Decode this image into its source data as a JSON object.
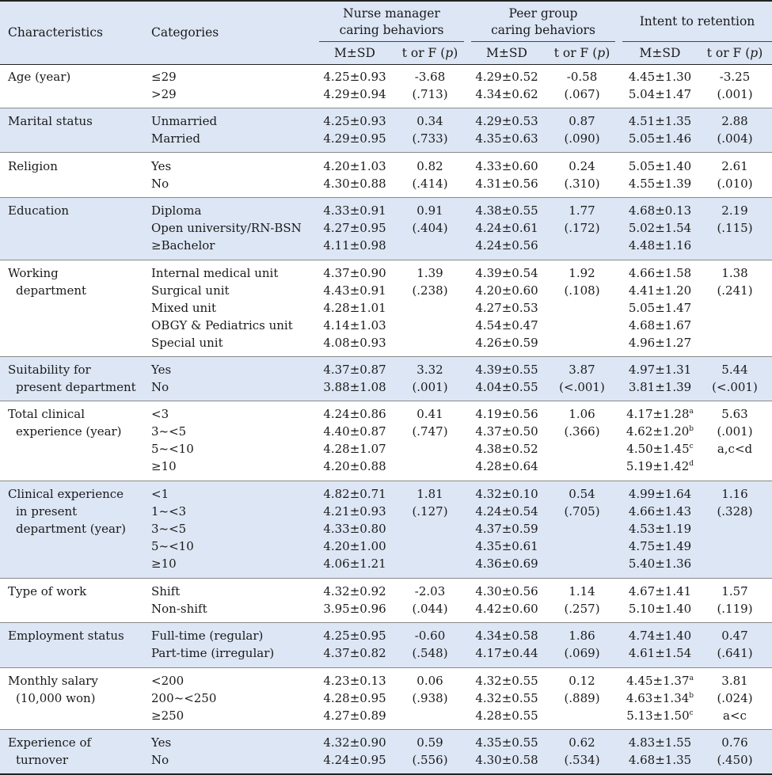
{
  "header": {
    "characteristics": "Characteristics",
    "categories": "Categories",
    "groups": [
      {
        "line1": "Nurse manager",
        "line2": "caring behaviors"
      },
      {
        "line1": "Peer group",
        "line2": "caring behaviors"
      },
      {
        "line1": "Intent to retention",
        "line2": ""
      }
    ],
    "msd": "M±SD",
    "test": "t or F (",
    "p": "p",
    "close": ")"
  },
  "rows": [
    {
      "char": [
        "Age (year)"
      ],
      "cats": [
        "≤29",
        ">29"
      ],
      "nm_msd": [
        "4.25±0.93",
        "4.29±0.94"
      ],
      "nm_t": [
        "-3.68",
        "(.713)"
      ],
      "pg_msd": [
        "4.29±0.52",
        "4.34±0.62"
      ],
      "pg_t": [
        "-0.58",
        "(.067)"
      ],
      "ir_msd": [
        "4.45±1.30",
        "5.04±1.47"
      ],
      "ir_t": [
        "-3.25",
        "(.001)"
      ]
    },
    {
      "char": [
        "Marital status"
      ],
      "cats": [
        "Unmarried",
        "Married"
      ],
      "nm_msd": [
        "4.25±0.93",
        "4.29±0.95"
      ],
      "nm_t": [
        "0.34",
        "(.733)"
      ],
      "pg_msd": [
        "4.29±0.53",
        "4.35±0.63"
      ],
      "pg_t": [
        "0.87",
        "(.090)"
      ],
      "ir_msd": [
        "4.51±1.35",
        "5.05±1.46"
      ],
      "ir_t": [
        "2.88",
        "(.004)"
      ]
    },
    {
      "char": [
        "Religion"
      ],
      "cats": [
        "Yes",
        "No"
      ],
      "nm_msd": [
        "4.20±1.03",
        "4.30±0.88"
      ],
      "nm_t": [
        "0.82",
        "(.414)"
      ],
      "pg_msd": [
        "4.33±0.60",
        "4.31±0.56"
      ],
      "pg_t": [
        "0.24",
        "(.310)"
      ],
      "ir_msd": [
        "5.05±1.40",
        "4.55±1.39"
      ],
      "ir_t": [
        "2.61",
        "(.010)"
      ]
    },
    {
      "char": [
        "Education"
      ],
      "cats": [
        "Diploma",
        "Open university/RN-BSN",
        "≥Bachelor"
      ],
      "nm_msd": [
        "4.33±0.91",
        "4.27±0.95",
        "4.11±0.98"
      ],
      "nm_t": [
        "0.91",
        "(.404)"
      ],
      "pg_msd": [
        "4.38±0.55",
        "4.24±0.61",
        "4.24±0.56"
      ],
      "pg_t": [
        "1.77",
        "(.172)"
      ],
      "ir_msd": [
        "4.68±0.13",
        "5.02±1.54",
        "4.48±1.16"
      ],
      "ir_t": [
        "2.19",
        "(.115)"
      ]
    },
    {
      "char": [
        "Working",
        "department"
      ],
      "cats": [
        "Internal medical unit",
        "Surgical unit",
        "Mixed unit",
        "OBGY & Pediatrics unit",
        "Special unit"
      ],
      "nm_msd": [
        "4.37±0.90",
        "4.43±0.91",
        "4.28±1.01",
        "4.14±1.03",
        "4.08±0.93"
      ],
      "nm_t": [
        "1.39",
        "(.238)"
      ],
      "pg_msd": [
        "4.39±0.54",
        "4.20±0.60",
        "4.27±0.53",
        "4.54±0.47",
        "4.26±0.59"
      ],
      "pg_t": [
        "1.92",
        "(.108)"
      ],
      "ir_msd": [
        "4.66±1.58",
        "4.41±1.20",
        "5.05±1.47",
        "4.68±1.67",
        "4.96±1.27"
      ],
      "ir_t": [
        "1.38",
        "(.241)"
      ]
    },
    {
      "char": [
        "Suitability for",
        "present department"
      ],
      "cats": [
        "Yes",
        "No"
      ],
      "nm_msd": [
        "4.37±0.87",
        "3.88±1.08"
      ],
      "nm_t": [
        "3.32",
        "(.001)"
      ],
      "pg_msd": [
        "4.39±0.55",
        "4.04±0.55"
      ],
      "pg_t": [
        "3.87",
        "(<.001)"
      ],
      "ir_msd": [
        "4.97±1.31",
        "3.81±1.39"
      ],
      "ir_t": [
        "5.44",
        "(<.001)"
      ]
    },
    {
      "char": [
        "Total clinical",
        "experience (year)"
      ],
      "cats": [
        "<3",
        "3~<5",
        "5~<10",
        "≥10"
      ],
      "nm_msd": [
        "4.24±0.86",
        "4.40±0.87",
        "4.28±1.07",
        "4.20±0.88"
      ],
      "nm_t": [
        "0.41",
        "(.747)"
      ],
      "pg_msd": [
        "4.19±0.56",
        "4.37±0.50",
        "4.38±0.52",
        "4.28±0.64"
      ],
      "pg_t": [
        "1.06",
        "(.366)"
      ],
      "ir_msd": [
        "4.17±1.28",
        "4.62±1.20",
        "4.50±1.45",
        "5.19±1.42"
      ],
      "ir_sup": [
        "a",
        "b",
        "c",
        "d"
      ],
      "ir_t": [
        "5.63",
        "(.001)",
        "a,c<d"
      ]
    },
    {
      "char": [
        "Clinical experience",
        "in present",
        "department (year)"
      ],
      "cats": [
        "<1",
        "1~<3",
        "3~<5",
        "5~<10",
        "≥10"
      ],
      "nm_msd": [
        "4.82±0.71",
        "4.21±0.93",
        "4.33±0.80",
        "4.20±1.00",
        "4.06±1.21"
      ],
      "nm_t": [
        "1.81",
        "(.127)"
      ],
      "pg_msd": [
        "4.32±0.10",
        "4.24±0.54",
        "4.37±0.59",
        "4.35±0.61",
        "4.36±0.69"
      ],
      "pg_t": [
        "0.54",
        "(.705)"
      ],
      "ir_msd": [
        "4.99±1.64",
        "4.66±1.43",
        "4.53±1.19",
        "4.75±1.49",
        "5.40±1.36"
      ],
      "ir_t": [
        "1.16",
        "(.328)"
      ]
    },
    {
      "char": [
        "Type of work"
      ],
      "cats": [
        "Shift",
        "Non-shift"
      ],
      "nm_msd": [
        "4.32±0.92",
        "3.95±0.96"
      ],
      "nm_t": [
        "-2.03",
        "(.044)"
      ],
      "pg_msd": [
        "4.30±0.56",
        "4.42±0.60"
      ],
      "pg_t": [
        "1.14",
        "(.257)"
      ],
      "ir_msd": [
        "4.67±1.41",
        "5.10±1.40"
      ],
      "ir_t": [
        "1.57",
        "(.119)"
      ]
    },
    {
      "char": [
        "Employment status"
      ],
      "cats": [
        "Full-time (regular)",
        "Part-time (irregular)"
      ],
      "nm_msd": [
        "4.25±0.95",
        "4.37±0.82"
      ],
      "nm_t": [
        "-0.60",
        "(.548)"
      ],
      "pg_msd": [
        "4.34±0.58",
        "4.17±0.44"
      ],
      "pg_t": [
        "1.86",
        "(.069)"
      ],
      "ir_msd": [
        "4.74±1.40",
        "4.61±1.54"
      ],
      "ir_t": [
        "0.47",
        "(.641)"
      ]
    },
    {
      "char": [
        "Monthly salary",
        "(10,000 won)"
      ],
      "cats": [
        "<200",
        "200~<250",
        "≥250"
      ],
      "nm_msd": [
        "4.23±0.13",
        "4.28±0.95",
        "4.27±0.89"
      ],
      "nm_t": [
        "0.06",
        "(.938)"
      ],
      "pg_msd": [
        "4.32±0.55",
        "4.32±0.55",
        "4.28±0.55"
      ],
      "pg_t": [
        "0.12",
        "(.889)"
      ],
      "ir_msd": [
        "4.45±1.37",
        "4.63±1.34",
        "5.13±1.50"
      ],
      "ir_sup": [
        "a",
        "b",
        "c"
      ],
      "ir_t": [
        "3.81",
        "(.024)",
        "a<c"
      ]
    },
    {
      "char": [
        "Experience of",
        "turnover"
      ],
      "cats": [
        "Yes",
        "No"
      ],
      "nm_msd": [
        "4.32±0.90",
        "4.24±0.95"
      ],
      "nm_t": [
        "0.59",
        "(.556)"
      ],
      "pg_msd": [
        "4.35±0.55",
        "4.30±0.58"
      ],
      "pg_t": [
        "0.62",
        "(.534)"
      ],
      "ir_msd": [
        "4.83±1.55",
        "4.68±1.35"
      ],
      "ir_t": [
        "0.76",
        "(.450)"
      ]
    }
  ]
}
